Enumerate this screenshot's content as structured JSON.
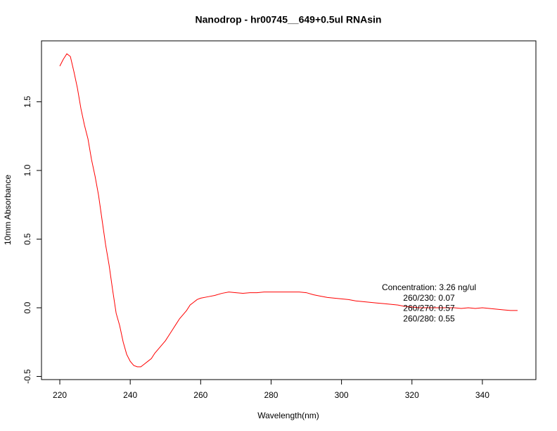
{
  "chart_data": {
    "type": "line",
    "title": "Nanodrop - hr00745__649+0.5ul RNAsin",
    "x_label": "Wavelength(nm)",
    "y_label": "10mm Absorbance",
    "color": "#ff0000",
    "x": [
      220,
      221,
      222,
      223,
      224,
      225,
      226,
      227,
      228,
      229,
      230,
      231,
      232,
      233,
      234,
      235,
      236,
      237,
      238,
      239,
      240,
      241,
      242,
      243,
      244,
      245,
      246,
      247,
      248,
      249,
      250,
      251,
      252,
      253,
      254,
      255,
      256,
      257,
      258,
      259,
      260,
      262,
      264,
      266,
      268,
      270,
      272,
      274,
      276,
      278,
      280,
      282,
      284,
      286,
      288,
      290,
      292,
      294,
      296,
      298,
      300,
      302,
      304,
      306,
      308,
      310,
      312,
      314,
      316,
      318,
      320,
      322,
      324,
      326,
      328,
      330,
      332,
      334,
      336,
      338,
      340,
      342,
      344,
      346,
      348,
      350
    ],
    "values": [
      1.76,
      1.81,
      1.85,
      1.83,
      1.72,
      1.6,
      1.45,
      1.33,
      1.23,
      1.08,
      0.96,
      0.82,
      0.64,
      0.46,
      0.31,
      0.13,
      -0.04,
      -0.13,
      -0.25,
      -0.34,
      -0.39,
      -0.42,
      -0.43,
      -0.43,
      -0.41,
      -0.39,
      -0.37,
      -0.33,
      -0.3,
      -0.27,
      -0.24,
      -0.2,
      -0.16,
      -0.12,
      -0.08,
      -0.05,
      -0.02,
      0.02,
      0.04,
      0.06,
      0.07,
      0.08,
      0.09,
      0.105,
      0.115,
      0.11,
      0.105,
      0.11,
      0.11,
      0.115,
      0.115,
      0.115,
      0.115,
      0.115,
      0.115,
      0.11,
      0.095,
      0.085,
      0.075,
      0.07,
      0.065,
      0.06,
      0.05,
      0.045,
      0.04,
      0.035,
      0.03,
      0.025,
      0.02,
      0.01,
      0.005,
      0,
      0,
      0,
      0,
      0,
      0,
      -0.005,
      0,
      -0.005,
      0,
      -0.005,
      -0.01,
      -0.015,
      -0.02,
      -0.02
    ],
    "xlim": [
      214.8,
      355.2
    ],
    "ylim": [
      -0.523,
      1.944
    ],
    "xticks": [
      220,
      240,
      260,
      280,
      300,
      320,
      340
    ],
    "yticks": [
      -0.5,
      {
        "value": 0,
        "label": "0.0"
      },
      0.5,
      {
        "value": 1,
        "label": "1.0"
      },
      1.5
    ],
    "annotations": [
      "Concentration: 3.26 ng/ul",
      "260/230: 0.07",
      "260/270: 0.57",
      "260/280: 0.55"
    ]
  }
}
